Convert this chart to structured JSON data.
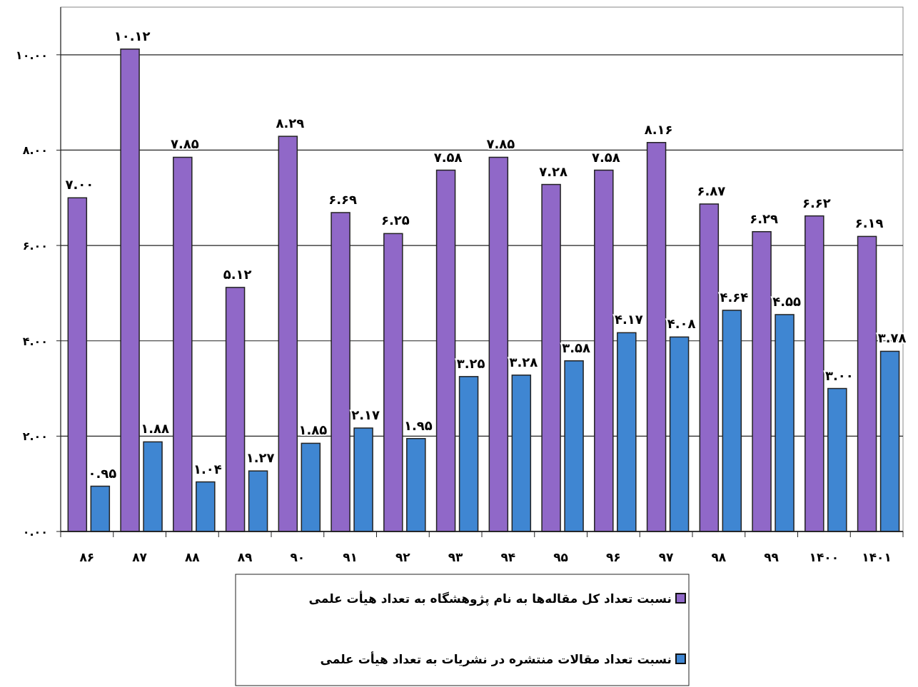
{
  "chart_data": {
    "type": "bar",
    "categories": [
      "۸۶",
      "۸۷",
      "۸۸",
      "۸۹",
      "۹۰",
      "۹۱",
      "۹۲",
      "۹۳",
      "۹۴",
      "۹۵",
      "۹۶",
      "۹۷",
      "۹۸",
      "۹۹",
      "۱۴۰۰",
      "۱۴۰۱"
    ],
    "series": [
      {
        "name": "نسبت تعداد کل مقاله‌ها به نام پژوهشگاه به تعداد هیأت علمی",
        "color": "#9068c8",
        "values": [
          7.0,
          10.12,
          7.85,
          5.12,
          8.29,
          6.69,
          6.25,
          7.58,
          7.85,
          7.28,
          7.58,
          8.16,
          6.87,
          6.29,
          6.62,
          6.19
        ],
        "value_labels": [
          "۷.۰۰",
          "۱۰.۱۲",
          "۷.۸۵",
          "۵.۱۲",
          "۸.۲۹",
          "۶.۶۹",
          "۶.۲۵",
          "۷.۵۸",
          "۷.۸۵",
          "۷.۲۸",
          "۷.۵۸",
          "۸.۱۶",
          "۶.۸۷",
          "۶.۲۹",
          "۶.۶۲",
          "۶.۱۹"
        ]
      },
      {
        "name": "نسبت تعداد مقالات منتشره در نشریات به تعداد هیأت علمی",
        "color": "#3f86d2",
        "values": [
          0.95,
          1.88,
          1.04,
          1.27,
          1.85,
          2.17,
          1.95,
          3.25,
          3.28,
          3.58,
          4.17,
          4.08,
          4.64,
          4.55,
          3.0,
          3.78
        ],
        "value_labels": [
          "۰.۹۵",
          "۱.۸۸",
          "۱.۰۴",
          "۱.۲۷",
          "۱.۸۵",
          "۲.۱۷",
          "۱.۹۵",
          "۳.۲۵",
          "۳.۲۸",
          "۳.۵۸",
          "۴.۱۷",
          "۴.۰۸",
          "۴.۶۴",
          "۴.۵۵",
          "۳.۰۰",
          "۳.۷۸"
        ]
      }
    ],
    "ylim": [
      0,
      11
    ],
    "yticks": [
      {
        "value": 0,
        "label": "۰.۰۰"
      },
      {
        "value": 2,
        "label": "۲.۰۰"
      },
      {
        "value": 4,
        "label": "۴.۰۰"
      },
      {
        "value": 6,
        "label": "۶.۰۰"
      },
      {
        "value": 8,
        "label": "۸.۰۰"
      },
      {
        "value": 10,
        "label": "۱۰.۰۰"
      }
    ],
    "grid": "y",
    "legend": "bottom"
  }
}
